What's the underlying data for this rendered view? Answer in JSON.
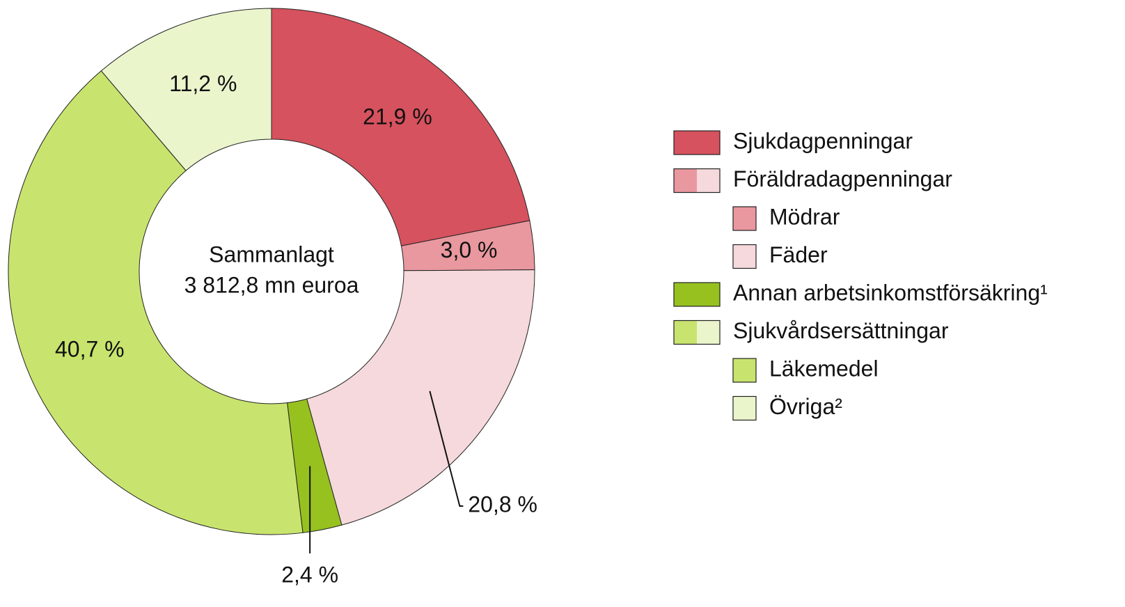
{
  "chart_data": {
    "type": "donut",
    "center_label": [
      "Sammanlagt",
      "3 812,8 mn euroa"
    ],
    "categories": [
      "Sjukdagpenningar",
      "Mödrar",
      "Fäder",
      "Annan arbetsinkomstförsäkring¹",
      "Läkemedel",
      "Övriga²"
    ],
    "groups": [
      null,
      "Föräldradagpenningar",
      "Föräldradagpenningar",
      null,
      "Sjukvårdsersättningar",
      "Sjukvårdsersättningar"
    ],
    "values": [
      21.9,
      3.0,
      20.8,
      2.4,
      40.7,
      11.2
    ],
    "value_labels": [
      "21,9 %",
      "3,0 %",
      "20,8 %",
      "2,4 %",
      "40,7 %",
      "11,2 %"
    ],
    "colors": [
      "#d6525e",
      "#e8989e",
      "#f6d9dc",
      "#96c11f",
      "#c8e46e",
      "#eaf5cc"
    ]
  }
}
